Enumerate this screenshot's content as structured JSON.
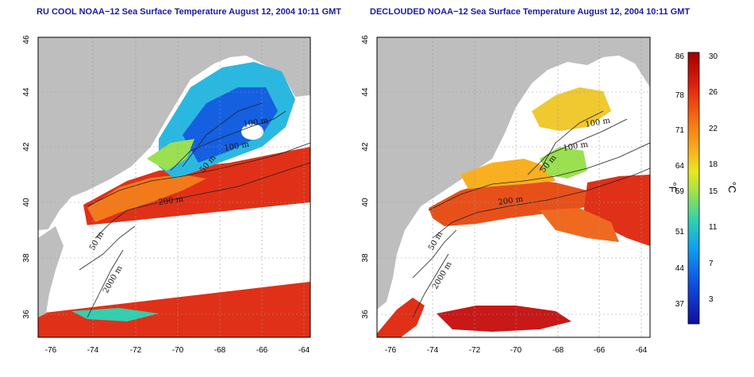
{
  "panels": [
    {
      "id": "left",
      "title": "RU COOL NOAA−12 Sea Surface Temperature August 12, 2004 10:11 GMT",
      "x_ticks": [
        "-76",
        "-74",
        "-72",
        "-70",
        "-68",
        "-66",
        "-64"
      ],
      "y_ticks": [
        "36",
        "38",
        "40",
        "42",
        "44",
        "46"
      ],
      "contour_labels": [
        "100 m",
        "100 m",
        "50 m",
        "200 m",
        "50 m",
        "2000 m"
      ]
    },
    {
      "id": "right",
      "title": "DECLOUDED NOAA−12 Sea Surface Temperature August 12, 2004 10:11 GMT",
      "x_ticks": [
        "-76",
        "-74",
        "-72",
        "-70",
        "-68",
        "-66",
        "-64"
      ],
      "y_ticks": [
        "36",
        "38",
        "40",
        "42",
        "44",
        "46"
      ],
      "contour_labels": [
        "100 m",
        "100 m",
        "50 m",
        "200 m",
        "50 m",
        "2000 m"
      ]
    }
  ],
  "colorbar": {
    "fahrenheit_ticks": [
      "86",
      "78",
      "71",
      "64",
      "59",
      "51",
      "44",
      "37"
    ],
    "celsius_ticks": [
      "30",
      "26",
      "22",
      "18",
      "15",
      "11",
      "7",
      "3"
    ],
    "left_unit": "°F",
    "right_unit": "°C",
    "colors": [
      "#a00000",
      "#dd2010",
      "#f56a10",
      "#f8b020",
      "#e8e820",
      "#9ae050",
      "#30d0b0",
      "#10a0f0",
      "#1050e0",
      "#1010a0"
    ]
  },
  "colors": {
    "land": "#bebebe",
    "water_cold": "#1060e0",
    "water_warm": "#e02010",
    "title": "#1a1aa6"
  }
}
